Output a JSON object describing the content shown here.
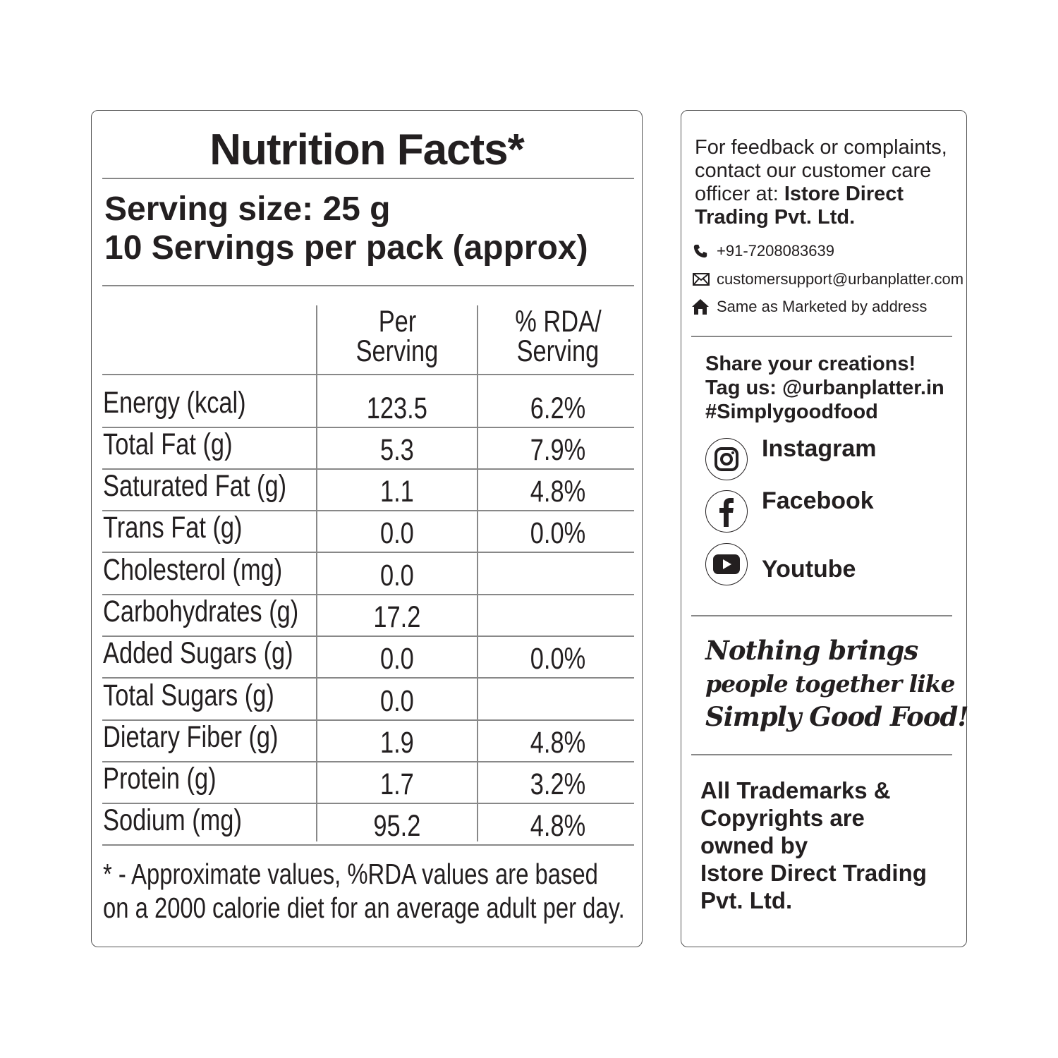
{
  "nutrition": {
    "title": "Nutrition Facts*",
    "serving_size": "Serving size: 25 g",
    "servings_per_pack": "10 Servings per pack (approx)",
    "col_per_serving": [
      "Per",
      "Serving"
    ],
    "col_rda": [
      "% RDA/",
      "Serving"
    ],
    "rows": [
      {
        "label": "Energy (kcal)",
        "per": "123.5",
        "rda": "6.2%"
      },
      {
        "label": "Total Fat (g)",
        "per": "5.3",
        "rda": "7.9%"
      },
      {
        "label": "Saturated Fat (g)",
        "per": "1.1",
        "rda": "4.8%"
      },
      {
        "label": "Trans Fat (g)",
        "per": "0.0",
        "rda": "0.0%"
      },
      {
        "label": "Cholesterol (mg)",
        "per": "0.0",
        "rda": ""
      },
      {
        "label": "Carbohydrates (g)",
        "per": "17.2",
        "rda": ""
      },
      {
        "label": "Added Sugars (g)",
        "per": "0.0",
        "rda": "0.0%"
      },
      {
        "label": "Total Sugars (g)",
        "per": "0.0",
        "rda": ""
      },
      {
        "label": "Dietary Fiber (g)",
        "per": "1.9",
        "rda": "4.8%"
      },
      {
        "label": "Protein (g)",
        "per": "1.7",
        "rda": "3.2%"
      },
      {
        "label": "Sodium (mg)",
        "per": "95.2",
        "rda": "4.8%"
      }
    ],
    "footnote": [
      "* - Approximate values, %RDA values are based",
      "on a 2000 calorie diet for an average adult per day."
    ]
  },
  "contact": {
    "intro": [
      "For feedback or complaints,",
      "contact our customer care",
      "officer at: "
    ],
    "company": [
      "Istore Direct",
      "Trading Pvt. Ltd."
    ],
    "phone": "+91-7208083639",
    "email": "customersupport@urbanplatter.com",
    "address": "Same as Marketed by address"
  },
  "share": {
    "lines": [
      "Share your creations!",
      "Tag us: @urbanplatter.in",
      "#Simplygoodfood"
    ],
    "social": [
      {
        "icon": "instagram-icon",
        "label": "Instagram"
      },
      {
        "icon": "facebook-icon",
        "label": "Facebook"
      },
      {
        "icon": "youtube-icon",
        "label": "Youtube"
      }
    ]
  },
  "tagline": [
    "Nothing brings",
    "people together like",
    "Simply Good Food!"
  ],
  "trademark": [
    "All Trademarks &",
    "Copyrights are",
    "owned by",
    "Istore Direct Trading",
    "Pvt. Ltd."
  ]
}
